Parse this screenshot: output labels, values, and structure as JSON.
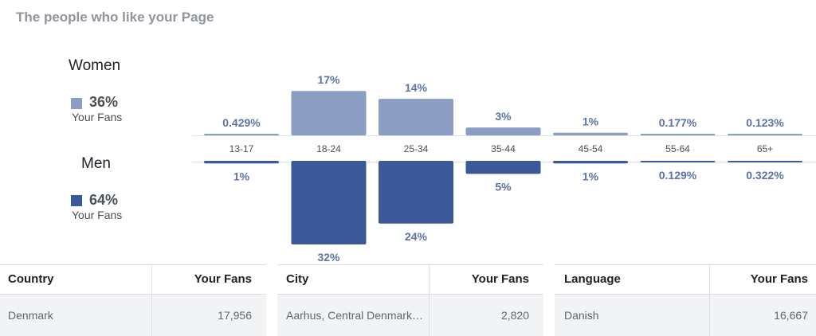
{
  "page_title": "The people who like your Page",
  "legend": {
    "women": {
      "heading": "Women",
      "percent": "36%",
      "sub": "Your Fans",
      "color": "#8b9dc3"
    },
    "men": {
      "heading": "Men",
      "percent": "64%",
      "sub": "Your Fans",
      "color": "#3b5998"
    }
  },
  "chart_data": {
    "type": "bar",
    "categories": [
      "13-17",
      "18-24",
      "25-34",
      "35-44",
      "45-54",
      "55-64",
      "65+"
    ],
    "series": [
      {
        "name": "Women",
        "values": [
          0.429,
          17,
          14,
          3,
          1,
          0.177,
          0.123
        ],
        "labels": [
          "0.429%",
          "17%",
          "14%",
          "3%",
          "1%",
          "0.177%",
          "0.123%"
        ],
        "color": "#8b9dc3"
      },
      {
        "name": "Men",
        "values": [
          1,
          32,
          24,
          5,
          1,
          0.129,
          0.322
        ],
        "labels": [
          "1%",
          "32%",
          "24%",
          "5%",
          "1%",
          "0.129%",
          "0.322%"
        ],
        "color": "#3b5998"
      }
    ],
    "unit": "%",
    "ylim": [
      0,
      32
    ]
  },
  "tables": [
    {
      "header": [
        "Country",
        "Your Fans"
      ],
      "row": [
        "Denmark",
        "17,956"
      ]
    },
    {
      "header": [
        "City",
        "Your Fans"
      ],
      "row": [
        "Aarhus, Central Denmark Region",
        "2,820"
      ]
    },
    {
      "header": [
        "Language",
        "Your Fans"
      ],
      "row": [
        "Danish",
        "16,667"
      ]
    }
  ],
  "colors": {
    "label": "#5b73a5",
    "muted": "#90949c"
  }
}
